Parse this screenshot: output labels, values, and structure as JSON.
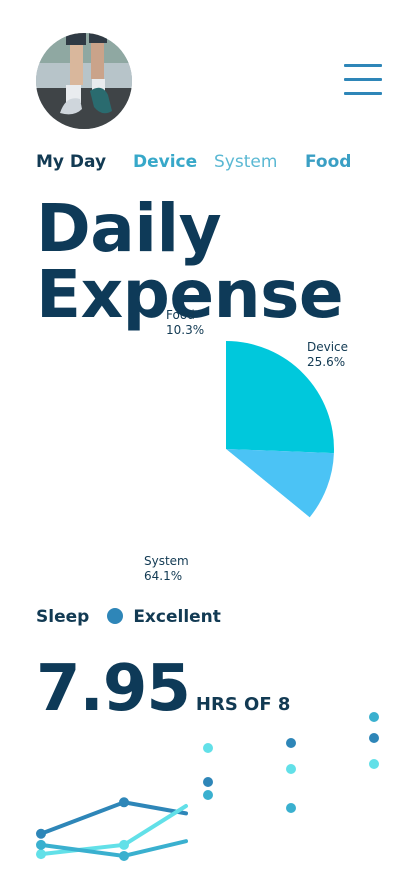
{
  "nav": {
    "items": [
      "My Day",
      "Device",
      "System",
      "Food"
    ]
  },
  "page": {
    "title_line1": "Daily",
    "title_line2": "Expense"
  },
  "colors": {
    "dark": "#0e3a58",
    "cyan": "#00c8dc",
    "sky": "#4bc3f5",
    "blue": "#2e86b8",
    "teal": "#3ab0cf",
    "aqua": "#62e0e8"
  },
  "chart_data": [
    {
      "type": "pie",
      "slices": [
        {
          "label": "Device",
          "value": 25.6,
          "display": "25.6%",
          "color": "#00c8dc"
        },
        {
          "label": "Food",
          "value": 10.3,
          "display": "10.3%",
          "color": "#4bc3f5"
        },
        {
          "label": "System",
          "value": 64.1,
          "display": "64.1%",
          "color": "#ffffff"
        }
      ]
    },
    {
      "type": "line",
      "series": [
        {
          "values": [
            2.5,
            4.2,
            3.6
          ],
          "color": "#2e86b8"
        },
        {
          "values": [
            1.4,
            1.9,
            4.0
          ],
          "color": "#62e0e8"
        },
        {
          "values": [
            1.9,
            1.3,
            2.1
          ],
          "color": "#3ab0cf"
        }
      ]
    }
  ],
  "sleep": {
    "label": "Sleep",
    "status": "Excellent",
    "hours": "7.95",
    "of": "HRS OF 8"
  },
  "icons": {
    "menu": "hamburger-icon",
    "status": "status-dot-icon"
  }
}
